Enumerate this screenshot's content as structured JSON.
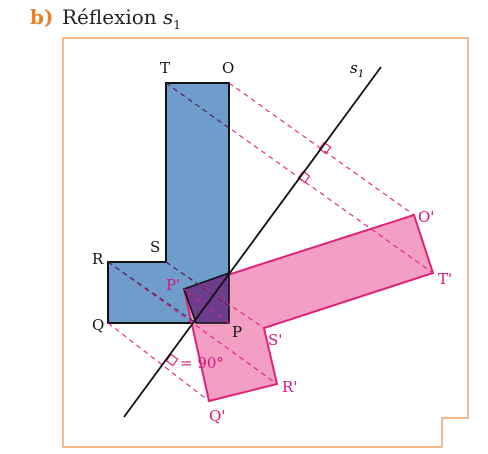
{
  "heading": {
    "marker": "b)",
    "text": "Réflexion ",
    "symbol": "s",
    "subscript": "1"
  },
  "axis": {
    "name": "s",
    "subscript": "1"
  },
  "original": {
    "labels": {
      "T": "T",
      "O": "O",
      "R": "R",
      "S": "S",
      "Q": "Q",
      "P": "P"
    }
  },
  "image": {
    "labels": {
      "O": "O'",
      "T": "T'",
      "S": "S'",
      "R": "R'",
      "Q": "Q'",
      "P": "P'"
    }
  },
  "angle_note": "= 90°",
  "colors": {
    "accent_orange": "#e8822a",
    "shape_blue": "#6f9dcb",
    "shape_pink": "#f29ac0",
    "overlap_purple": "#6b3d8c",
    "construction_pink": "#e0217a",
    "label_pink": "#d6137a",
    "frame_orange": "#f0a060"
  }
}
